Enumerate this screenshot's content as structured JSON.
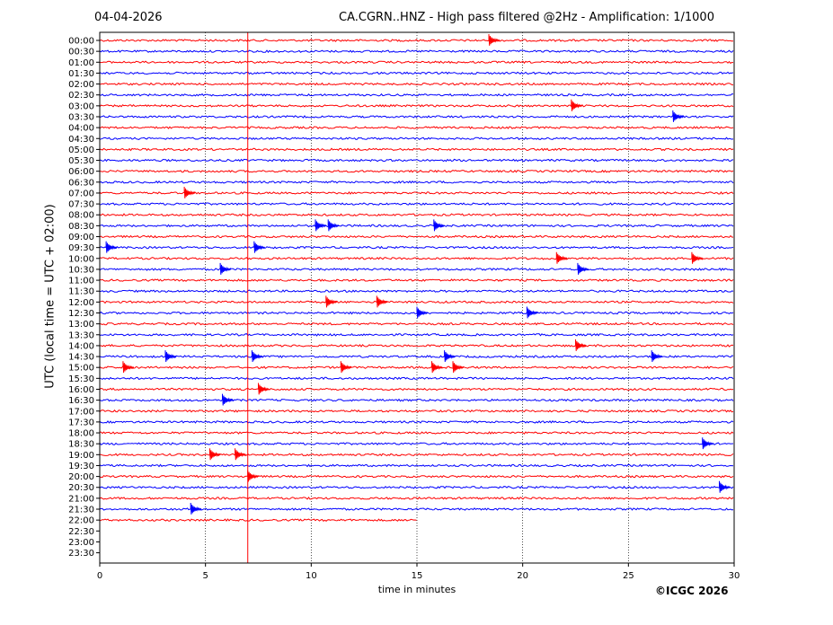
{
  "header": {
    "date": "04-04-2026",
    "title": "CA.CGRN..HNZ - High pass filtered @2Hz - Amplification: 1/1000"
  },
  "footer": {
    "copyright": "©ICGC 2026"
  },
  "chart_data": {
    "type": "line",
    "title": "CA.CGRN..HNZ - High pass filtered @2Hz - Amplification: 1/1000",
    "xlabel": "time in minutes",
    "ylabel": "UTC (local time = UTC + 02:00)",
    "xlim": [
      0,
      30
    ],
    "xticks": [
      0,
      5,
      10,
      15,
      20,
      25,
      30
    ],
    "grid": "vertical dotted at 5, 10, 15, 20, 25",
    "series_colors": [
      "#ff0000",
      "#0000ff"
    ],
    "row_labels": [
      "00:00",
      "00:30",
      "01:00",
      "01:30",
      "02:00",
      "02:30",
      "03:00",
      "03:30",
      "04:00",
      "04:30",
      "05:00",
      "05:30",
      "06:00",
      "06:30",
      "07:00",
      "07:30",
      "08:00",
      "08:30",
      "09:00",
      "09:30",
      "10:00",
      "10:30",
      "11:00",
      "11:30",
      "12:00",
      "12:30",
      "13:00",
      "13:30",
      "14:00",
      "14:30",
      "15:00",
      "15:30",
      "16:00",
      "16:30",
      "17:00",
      "17:30",
      "18:00",
      "18:30",
      "19:00",
      "19:30",
      "20:00",
      "20:30",
      "21:00",
      "21:30",
      "22:00",
      "22:30",
      "23:00",
      "23:30"
    ],
    "traces_end_row": "22:00",
    "traces_end_minute": 15,
    "vertical_marker_minute": 7.0,
    "events": [
      {
        "row": "00:00",
        "minute": 18.4
      },
      {
        "row": "03:00",
        "minute": 22.3
      },
      {
        "row": "03:30",
        "minute": 27.1
      },
      {
        "row": "07:00",
        "minute": 4.0
      },
      {
        "row": "08:30",
        "minute": 10.2
      },
      {
        "row": "08:30",
        "minute": 10.8
      },
      {
        "row": "08:30",
        "minute": 15.8
      },
      {
        "row": "09:30",
        "minute": 0.3
      },
      {
        "row": "09:30",
        "minute": 7.3
      },
      {
        "row": "10:00",
        "minute": 21.6
      },
      {
        "row": "10:00",
        "minute": 28.0
      },
      {
        "row": "10:30",
        "minute": 5.7
      },
      {
        "row": "10:30",
        "minute": 22.6
      },
      {
        "row": "12:00",
        "minute": 10.7
      },
      {
        "row": "12:00",
        "minute": 13.1
      },
      {
        "row": "12:30",
        "minute": 15.0
      },
      {
        "row": "12:30",
        "minute": 20.2
      },
      {
        "row": "14:00",
        "minute": 22.5
      },
      {
        "row": "14:30",
        "minute": 3.1
      },
      {
        "row": "14:30",
        "minute": 7.2
      },
      {
        "row": "14:30",
        "minute": 16.3
      },
      {
        "row": "14:30",
        "minute": 26.1
      },
      {
        "row": "15:00",
        "minute": 1.1
      },
      {
        "row": "15:00",
        "minute": 11.4
      },
      {
        "row": "15:00",
        "minute": 15.7
      },
      {
        "row": "15:00",
        "minute": 16.7
      },
      {
        "row": "16:00",
        "minute": 7.5
      },
      {
        "row": "16:30",
        "minute": 5.8
      },
      {
        "row": "18:30",
        "minute": 28.5
      },
      {
        "row": "19:00",
        "minute": 5.2
      },
      {
        "row": "19:00",
        "minute": 6.4
      },
      {
        "row": "20:00",
        "minute": 7.0
      },
      {
        "row": "20:30",
        "minute": 29.3
      },
      {
        "row": "21:30",
        "minute": 4.3
      }
    ]
  }
}
